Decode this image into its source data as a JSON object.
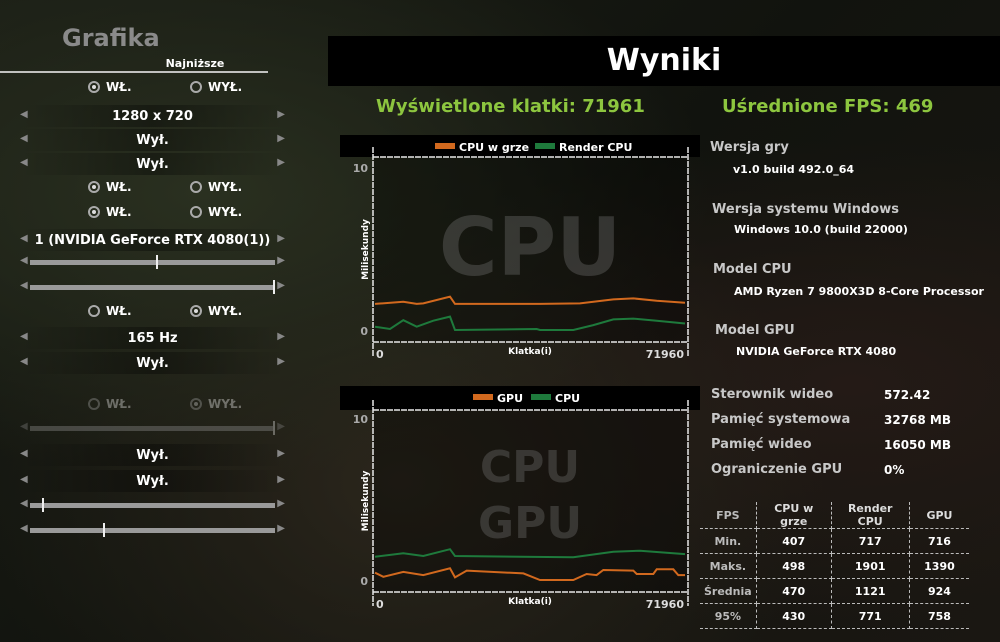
{
  "left_panel": {
    "title": "Grafika",
    "preset": "Najniższe",
    "radio_on": "WŁ.",
    "radio_off": "WYŁ.",
    "radio_rows": [
      {
        "selected": "on",
        "disabled": false
      },
      {
        "selected": "on",
        "disabled": false
      },
      {
        "selected": "on",
        "disabled": false
      },
      {
        "selected": "off",
        "disabled": false
      },
      {
        "selected": "off",
        "disabled": true
      }
    ],
    "selectors": [
      "1280 x 720",
      "Wył.",
      "Wył.",
      "1 (NVIDIA GeForce RTX 4080(1))",
      "165 Hz",
      "Wył.",
      "Wył.",
      "Wył."
    ],
    "sliders": [
      0.52,
      1.0,
      1.0,
      0.05,
      0.3
    ]
  },
  "header": {
    "title": "Wyniki"
  },
  "summary": {
    "frames": "Wyświetlone klatki: 71961",
    "avg_fps": "Uśrednione FPS: 469",
    "accent": "#8dc63f"
  },
  "info": {
    "game_version_label": "Wersja gry",
    "game_version": "v1.0 build 492.0_64",
    "windows_label": "Wersja systemu Windows",
    "windows": "Windows 10.0 (build 22000)",
    "cpu_label": "Model CPU",
    "cpu": "AMD Ryzen 7 9800X3D 8-Core Processor",
    "gpu_label": "Model GPU",
    "gpu": "NVIDIA GeForce RTX 4080",
    "stats": [
      {
        "label": "Sterownik wideo",
        "value": "572.42"
      },
      {
        "label": "Pamięć systemowa",
        "value": "32768 MB"
      },
      {
        "label": "Pamięć wideo",
        "value": "16050 MB"
      },
      {
        "label": "Ograniczenie GPU",
        "value": "0%"
      }
    ]
  },
  "fps_table": {
    "headers": [
      "FPS",
      "CPU w grze",
      "Render CPU",
      "GPU"
    ],
    "rows": [
      [
        "Min.",
        "407",
        "717",
        "716"
      ],
      [
        "Maks.",
        "498",
        "1901",
        "1390"
      ],
      [
        "Średnia",
        "470",
        "1121",
        "924"
      ],
      [
        "95%",
        "430",
        "771",
        "758"
      ]
    ]
  },
  "chart_data": [
    {
      "type": "line",
      "watermark": [
        "CPU"
      ],
      "xlabel": "Klatka(i)",
      "ylabel": "Milisekundy",
      "xlim": [
        0,
        71960
      ],
      "ylim": [
        0,
        10
      ],
      "x_ticks": [
        "0",
        "71960"
      ],
      "y_ticks": [
        "0",
        "10"
      ],
      "legend": "top",
      "series": [
        {
          "name": "CPU w grze",
          "color": "#d2691e",
          "x": [
            0,
            6577,
            9672,
            11220,
            17410,
            18570,
            38300,
            47587,
            55323,
            59966,
            65383,
            71960
          ],
          "y": [
            1.6,
            1.73,
            1.6,
            1.63,
            2.04,
            1.6,
            1.6,
            1.63,
            1.88,
            1.94,
            1.8,
            1.67
          ]
        },
        {
          "name": "Render CPU",
          "color": "#1e7a3c",
          "x": [
            0,
            3482,
            6577,
            9672,
            13541,
            17410,
            18570,
            37527,
            38300,
            46040,
            50682,
            55323,
            59966,
            65383,
            71960
          ],
          "y": [
            0.2,
            0.06,
            0.6,
            0.2,
            0.57,
            0.82,
            0.0,
            0.06,
            0.0,
            0.0,
            0.3,
            0.65,
            0.7,
            0.57,
            0.4
          ]
        }
      ]
    },
    {
      "type": "line",
      "watermark": [
        "CPU",
        "GPU"
      ],
      "xlabel": "Klatka(i)",
      "ylabel": "Milisekundy",
      "xlim": [
        0,
        71960
      ],
      "ylim": [
        0,
        10
      ],
      "x_ticks": [
        "0",
        "71960"
      ],
      "y_ticks": [
        "0",
        "10"
      ],
      "legend": "top",
      "series": [
        {
          "name": "GPU",
          "color": "#d2691e",
          "x": [
            0,
            1935,
            6577,
            11220,
            17410,
            18570,
            21280,
            34440,
            38300,
            46040,
            49130,
            51450,
            53000,
            59966,
            60740,
            64610,
            65383,
            69250,
            70410,
            71960
          ],
          "y": [
            0.45,
            0.2,
            0.5,
            0.3,
            0.72,
            0.16,
            0.58,
            0.41,
            0.0,
            0.0,
            0.37,
            0.3,
            0.62,
            0.58,
            0.37,
            0.37,
            0.66,
            0.66,
            0.3,
            0.3
          ]
        },
        {
          "name": "CPU",
          "color": "#1e7a3c",
          "x": [
            0,
            6577,
            11220,
            17410,
            18570,
            46040,
            55323,
            61514,
            71960
          ],
          "y": [
            1.44,
            1.65,
            1.48,
            1.9,
            1.48,
            1.4,
            1.75,
            1.81,
            1.6
          ]
        }
      ]
    }
  ]
}
